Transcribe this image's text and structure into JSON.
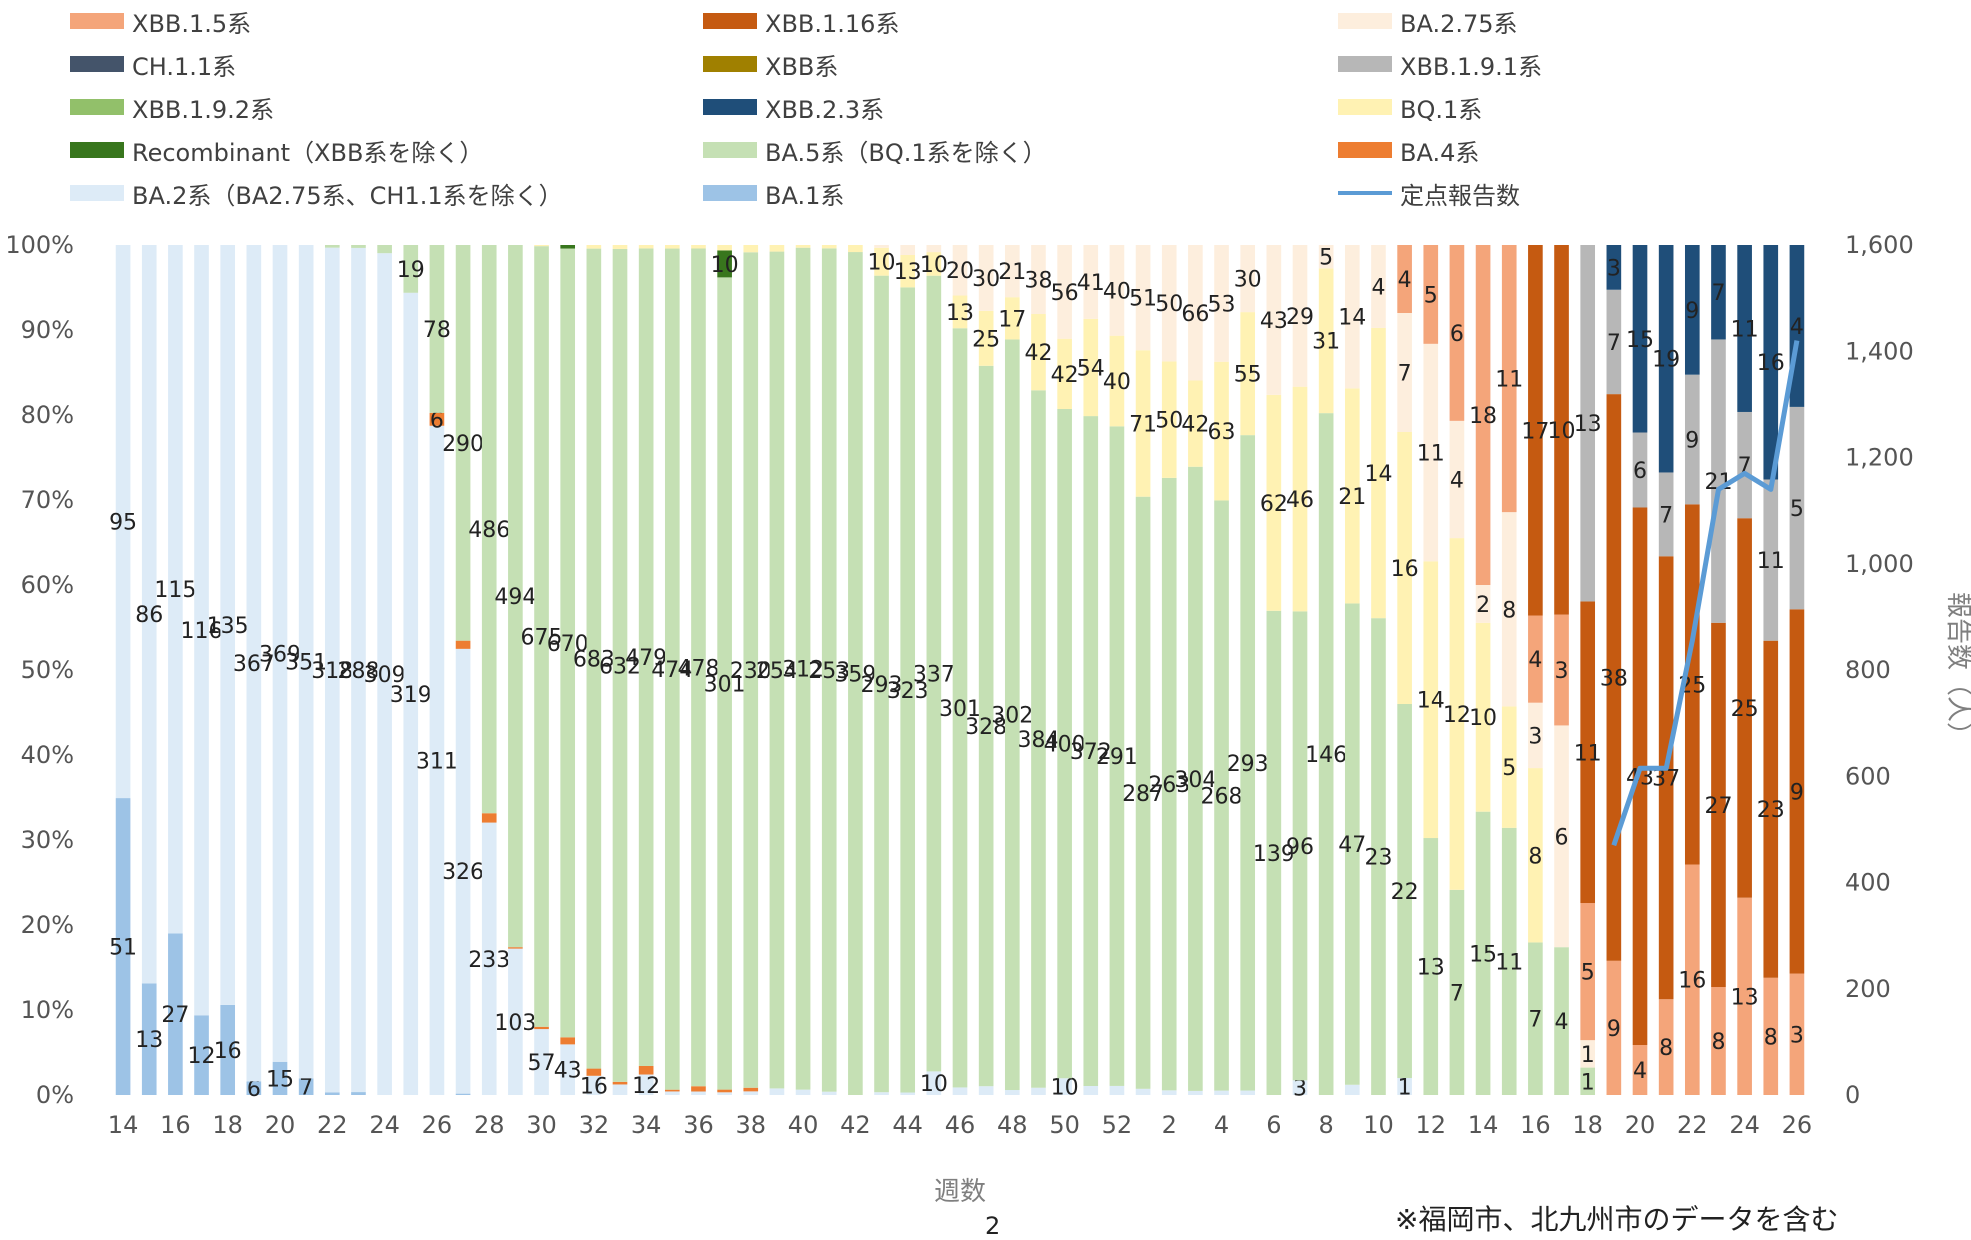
{
  "chart_data": {
    "type": "bar",
    "stacked": "percent",
    "xlabel": "週数",
    "ylabel_right": "報告数（人）",
    "y_left_ticks": [
      "0%",
      "10%",
      "20%",
      "30%",
      "40%",
      "50%",
      "60%",
      "70%",
      "80%",
      "90%",
      "100%"
    ],
    "y_right_ticks": [
      "0",
      "200",
      "400",
      "600",
      "800",
      "1,000",
      "1,200",
      "1,400",
      "1,600"
    ],
    "ylim_right": [
      0,
      1600
    ],
    "x_tick_labels": [
      "14",
      "16",
      "18",
      "20",
      "22",
      "24",
      "26",
      "28",
      "30",
      "32",
      "34",
      "36",
      "38",
      "40",
      "42",
      "44",
      "46",
      "48",
      "50",
      "52",
      "2",
      "4",
      "6",
      "8",
      "10",
      "12",
      "14",
      "16",
      "18",
      "20",
      "22",
      "24",
      "26"
    ],
    "legend": [
      {
        "name": "XBB.1.5系",
        "color": "#f4a57a"
      },
      {
        "name": "XBB.1.16系",
        "color": "#c55a11"
      },
      {
        "name": "BA.2.75系",
        "color": "#fdeedd"
      },
      {
        "name": "CH.1.1系",
        "color": "#44546a"
      },
      {
        "name": "XBB系",
        "color": "#a08000"
      },
      {
        "name": "XBB.1.9.1系",
        "color": "#b7b7b7"
      },
      {
        "name": "XBB.1.9.2系",
        "color": "#92c06a"
      },
      {
        "name": "XBB.2.3系",
        "color": "#1f4e79"
      },
      {
        "name": "BQ.1系",
        "color": "#fff2b3"
      },
      {
        "name": "Recombinant（XBB系を除く）",
        "color": "#38761d"
      },
      {
        "name": "BA.5系（BQ.1系を除く）",
        "color": "#c5e0b4"
      },
      {
        "name": "BA.4系",
        "color": "#ed7d31"
      },
      {
        "name": "BA.2系（BA2.75系、CH1.1系を除く）",
        "color": "#ddebf7"
      },
      {
        "name": "BA.1系",
        "color": "#9dc3e6"
      },
      {
        "name": "定点報告数",
        "color": "#5b9bd5",
        "line": true
      }
    ],
    "segment_keys": [
      "BA1",
      "BA2",
      "BA4",
      "BA5",
      "REC",
      "BQ1",
      "B275",
      "CH",
      "XBB",
      "X15",
      "X116",
      "X191",
      "X192",
      "X23"
    ],
    "segment_colors": {
      "BA1": "#9dc3e6",
      "BA2": "#ddebf7",
      "BA4": "#ed7d31",
      "BA5": "#c5e0b4",
      "REC": "#38761d",
      "BQ1": "#fff2b3",
      "B275": "#fdeedd",
      "CH": "#44546a",
      "XBB": "#a08000",
      "X15": "#f4a57a",
      "X116": "#c55a11",
      "X191": "#b7b7b7",
      "X192": "#92c06a",
      "X23": "#1f4e79"
    },
    "weeks": [
      {
        "week": "14",
        "BA1": 51,
        "BA2": 95
      },
      {
        "week": "15",
        "BA1": 13,
        "BA2": 86
      },
      {
        "week": "16",
        "BA1": 27,
        "BA2": 115
      },
      {
        "week": "17",
        "BA1": 12,
        "BA2": 116
      },
      {
        "week": "18",
        "BA1": 16,
        "BA2": 135
      },
      {
        "week": "19",
        "BA1": 6,
        "BA2": 367
      },
      {
        "week": "20",
        "BA1": 15,
        "BA2": 369
      },
      {
        "week": "21",
        "BA1": 7,
        "BA2": 351
      },
      {
        "week": "22",
        "BA1": 1,
        "BA2": 318,
        "BA5": 1
      },
      {
        "week": "23",
        "BA1": 1,
        "BA2": 288,
        "BA5": 1
      },
      {
        "week": "24",
        "BA2": 309,
        "BA5": 3
      },
      {
        "week": "25",
        "BA2": 319,
        "BA5": 19
      },
      {
        "week": "26",
        "BA2": 311,
        "BA4": 6,
        "BA5": 78
      },
      {
        "week": "27",
        "BA1": 1,
        "BA2": 326,
        "BA4": 6,
        "BA5": 290
      },
      {
        "week": "28",
        "BA2": 233,
        "BA4": 8,
        "BA5": 486
      },
      {
        "week": "29",
        "BA2": 103,
        "BA4": 1,
        "BA5": 494
      },
      {
        "week": "30",
        "BA2": 57,
        "BA4": 2,
        "BA5": 675,
        "BQ1": 1
      },
      {
        "week": "31",
        "BA2": 43,
        "BA4": 6,
        "BA5": 670,
        "REC": 3
      },
      {
        "week": "32",
        "BA2": 16,
        "BA4": 6,
        "BA5": 683,
        "BQ1": 3
      },
      {
        "week": "33",
        "BA2": 8,
        "BA4": 2,
        "BA5": 632,
        "BQ1": 3
      },
      {
        "week": "34",
        "BA2": 12,
        "BA4": 5,
        "BA5": 479,
        "BQ1": 2
      },
      {
        "week": "35",
        "BA2": 2,
        "BA4": 1,
        "BA5": 474,
        "BQ1": 2
      },
      {
        "week": "36",
        "BA2": 2,
        "BA4": 3,
        "BA5": 478,
        "BQ1": 2
      },
      {
        "week": "37",
        "BA2": 1,
        "BA4": 1,
        "BA5": 301,
        "BQ1": 2,
        "REC": 10
      },
      {
        "week": "38",
        "BA2": 1,
        "BA4": 1,
        "BA5": 230,
        "BQ1": 2
      },
      {
        "week": "39",
        "BA2": 2,
        "BA5": 254,
        "BQ1": 2
      },
      {
        "week": "40",
        "BA2": 2,
        "BA5": 312,
        "BQ1": 1
      },
      {
        "week": "41",
        "BA2": 1,
        "BA5": 253,
        "BQ1": 1
      },
      {
        "week": "42",
        "BA5": 359,
        "BQ1": 3
      },
      {
        "week": "43",
        "BA2": 1,
        "BA5": 293,
        "BQ1": 10,
        "B275": 1
      },
      {
        "week": "44",
        "BA2": 1,
        "BA5": 323,
        "BQ1": 13,
        "B275": 4
      },
      {
        "week": "45",
        "BA2": 10,
        "BA5": 337,
        "BQ1": 10,
        "B275": 3
      },
      {
        "week": "46",
        "BA2": 3,
        "BA5": 301,
        "BQ1": 13,
        "B275": 20
      },
      {
        "week": "47",
        "BA2": 4,
        "BA5": 328,
        "BQ1": 25,
        "B275": 30
      },
      {
        "week": "48",
        "BA2": 2,
        "BA5": 302,
        "BQ1": 17,
        "B275": 21
      },
      {
        "week": "49",
        "BA2": 4,
        "BA5": 384,
        "BQ1": 42,
        "B275": 38
      },
      {
        "week": "50",
        "BA2": 10,
        "BA5": 400,
        "BQ1": 42,
        "B275": 56
      },
      {
        "week": "51",
        "BA2": 5,
        "BA5": 372,
        "BQ1": 54,
        "B275": 41
      },
      {
        "week": "52",
        "BA2": 4,
        "BA5": 291,
        "BQ1": 40,
        "B275": 40
      },
      {
        "week": "1",
        "BA2": 3,
        "BA5": 287,
        "BQ1": 71,
        "B275": 51
      },
      {
        "week": "2",
        "BA2": 2,
        "BA5": 263,
        "BQ1": 50,
        "B275": 50
      },
      {
        "week": "3",
        "BA2": 2,
        "BA5": 304,
        "BQ1": 42,
        "B275": 66
      },
      {
        "week": "4",
        "BA2": 2,
        "BA5": 268,
        "BQ1": 63,
        "B275": 53
      },
      {
        "week": "5",
        "BA2": 2,
        "BA5": 293,
        "BQ1": 55,
        "B275": 30
      },
      {
        "week": "6",
        "BA5": 139,
        "BQ1": 62,
        "B275": 43
      },
      {
        "week": "7",
        "BA2": 3,
        "BA5": 96,
        "BQ1": 46,
        "B275": 29
      },
      {
        "week": "8",
        "BA5": 146,
        "BQ1": 31,
        "B275": 5
      },
      {
        "week": "9",
        "BA2": 1,
        "BA5": 47,
        "BQ1": 21,
        "B275": 14
      },
      {
        "week": "10",
        "BA5": 23,
        "BQ1": 14,
        "B275": 4
      },
      {
        "week": "11",
        "BA2": 1,
        "BA5": 22,
        "BQ1": 16,
        "B275": 7,
        "X15": 4
      },
      {
        "week": "12",
        "BA5": 13,
        "BQ1": 14,
        "B275": 11,
        "X15": 5
      },
      {
        "week": "13",
        "BA5": 7,
        "BQ1": 12,
        "B275": 4,
        "X15": 6
      },
      {
        "week": "14",
        "BA5": 15,
        "BQ1": 10,
        "B275": 2,
        "X15": 18
      },
      {
        "week": "15",
        "BA5": 11,
        "BQ1": 5,
        "B275": 8,
        "X15": 11
      },
      {
        "week": "16",
        "BA5": 7,
        "BQ1": 8,
        "B275": 3,
        "X15": 4,
        "X116": 17
      },
      {
        "week": "17",
        "BA5": 4,
        "B275": 6,
        "X15": 3,
        "X116": 10
      },
      {
        "week": "18",
        "BA5": 1,
        "B275": 1,
        "X15": 5,
        "X116": 11,
        "X191": 13
      },
      {
        "week": "19",
        "X15": 9,
        "X116": 38,
        "X191": 7,
        "X23": 3
      },
      {
        "week": "20",
        "X15": 4,
        "X116": 43,
        "X191": 6,
        "X23": 15
      },
      {
        "week": "21",
        "X15": 8,
        "X116": 37,
        "X191": 7,
        "X23": 19
      },
      {
        "week": "22",
        "X15": 16,
        "X116": 25,
        "X191": 9,
        "X23": 9
      },
      {
        "week": "23",
        "X15": 8,
        "X116": 27,
        "X191": 21,
        "X23": 7
      },
      {
        "week": "24",
        "X15": 13,
        "X116": 25,
        "X191": 7,
        "X23": 11
      },
      {
        "week": "25",
        "X15": 8,
        "X116": 23,
        "X191": 11,
        "X23": 16
      },
      {
        "week": "26",
        "X15": 3,
        "X116": 9,
        "X191": 5,
        "X23": 4
      }
    ],
    "line_series": {
      "name": "定点報告数",
      "weeks": [
        "19",
        "20",
        "21",
        "22",
        "23",
        "24",
        "25",
        "26"
      ],
      "values": [
        470,
        615,
        615,
        855,
        1140,
        1170,
        1140,
        1420
      ]
    }
  },
  "note": "※福岡市、北九州市のデータを含む",
  "footer_sub": "2"
}
